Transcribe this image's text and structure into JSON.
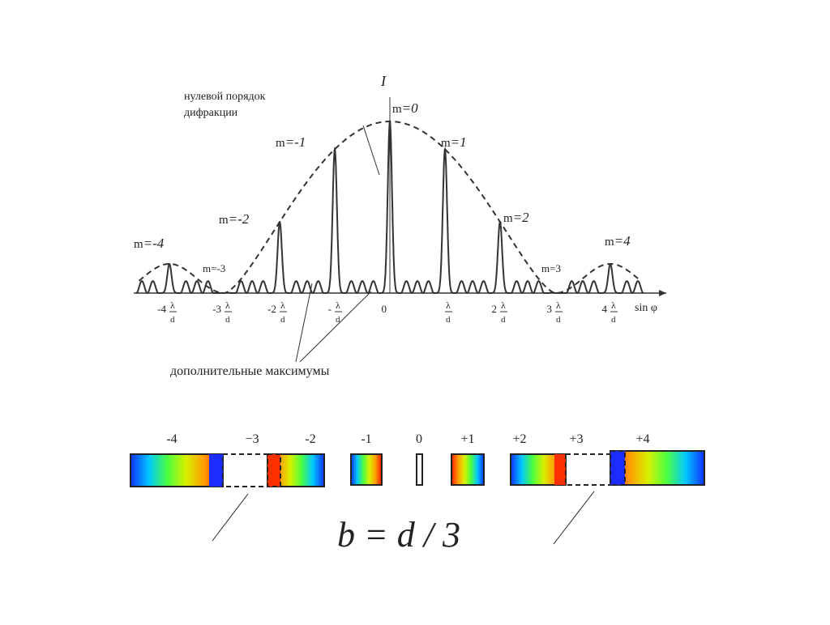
{
  "graph": {
    "axis_y": "I",
    "axis_x": "sin φ",
    "zero_order": [
      "нулевой порядок",
      "дифракции"
    ],
    "orders": [
      {
        "label": "m",
        "value": "=-4"
      },
      {
        "label": "m",
        "value": "=-2"
      },
      {
        "label": "m",
        "value": "=-1"
      },
      {
        "label": "m",
        "value": "=0"
      },
      {
        "label": "m",
        "value": "=1"
      },
      {
        "label": "m",
        "value": "=2"
      },
      {
        "label": "m",
        "value": "=4"
      }
    ],
    "zeros": [
      "m=-3",
      "m=3"
    ],
    "ticks": [
      "-4",
      "-3",
      "-2",
      "-",
      "0",
      "",
      "2",
      "3",
      "4"
    ],
    "fraction": {
      "num": "λ",
      "den": "d"
    },
    "extra_maxima": "дополнительные максимумы"
  },
  "spectrum": {
    "orders": [
      "-4",
      "−3",
      "-2",
      "-1",
      "0",
      "+1",
      "+2",
      "+3",
      "+4"
    ],
    "formula": "b = d / 3"
  }
}
